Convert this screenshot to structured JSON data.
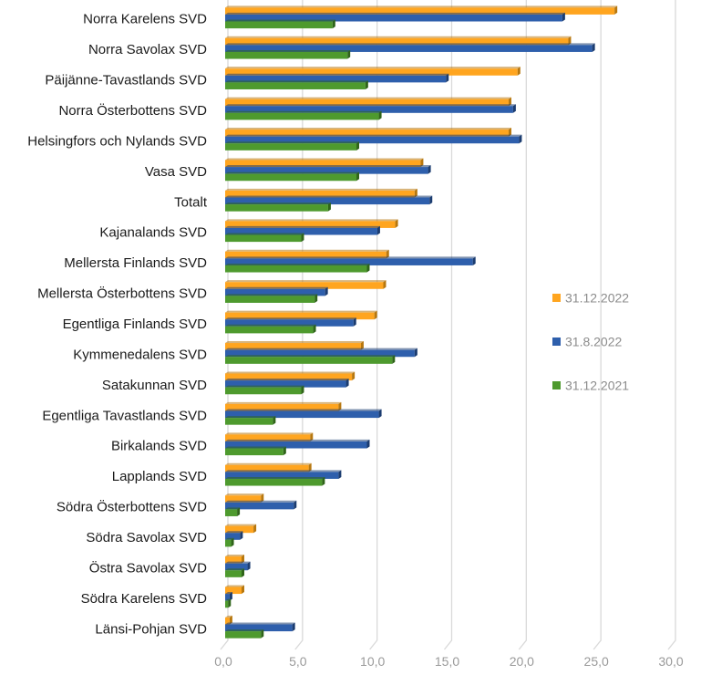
{
  "chart_data": {
    "type": "bar",
    "orientation": "horizontal",
    "title": "",
    "xlabel": "",
    "ylabel": "",
    "xlim": [
      0,
      30
    ],
    "x_ticks": [
      0,
      5,
      10,
      15,
      20,
      25,
      30
    ],
    "x_tick_labels": [
      "0,0",
      "5,0",
      "10,0",
      "15,0",
      "20,0",
      "25,0",
      "30,0"
    ],
    "grid": true,
    "legend_position": "right",
    "categories": [
      "Norra Karelens SVD",
      "Norra Savolax SVD",
      "Päijänne-Tavastlands SVD",
      "Norra Österbottens SVD",
      "Helsingfors och Nylands SVD",
      "Vasa SVD",
      "Totalt",
      "Kajanalands SVD",
      "Mellersta Finlands SVD",
      "Mellersta Österbottens SVD",
      "Egentliga Finlands SVD",
      "Kymmenedalens SVD",
      "Satakunnan SVD",
      "Egentliga Tavastlands SVD",
      "Birkalands SVD",
      "Lapplands SVD",
      "Södra Österbottens SVD",
      "Södra Savolax SVD",
      "Östra Savolax SVD",
      "Södra Karelens SVD",
      "Länsi-Pohjan SVD"
    ],
    "series": [
      {
        "name": "31.12.2022",
        "color": "#FFA51F",
        "edge": "#B7770E",
        "values": [
          26.1,
          23.0,
          19.6,
          19.0,
          19.0,
          13.1,
          12.7,
          11.4,
          10.8,
          10.6,
          10.0,
          9.1,
          8.5,
          7.6,
          5.7,
          5.6,
          2.4,
          1.9,
          1.1,
          1.1,
          0.3
        ]
      },
      {
        "name": "31.8.2022",
        "color": "#2E5FAC",
        "edge": "#1B3C70",
        "values": [
          22.6,
          24.6,
          14.8,
          19.3,
          19.7,
          13.6,
          13.7,
          10.2,
          16.6,
          6.7,
          8.6,
          12.7,
          8.1,
          10.3,
          9.5,
          7.6,
          4.6,
          1.0,
          1.5,
          0.3,
          4.5
        ]
      },
      {
        "name": "31.12.2021",
        "color": "#4E9A2E",
        "edge": "#2F6419",
        "values": [
          7.2,
          8.2,
          9.4,
          10.3,
          8.8,
          8.8,
          6.9,
          5.1,
          9.5,
          6.0,
          5.9,
          11.2,
          5.1,
          3.2,
          3.9,
          6.5,
          0.8,
          0.4,
          1.1,
          0.2,
          2.4
        ]
      }
    ]
  }
}
